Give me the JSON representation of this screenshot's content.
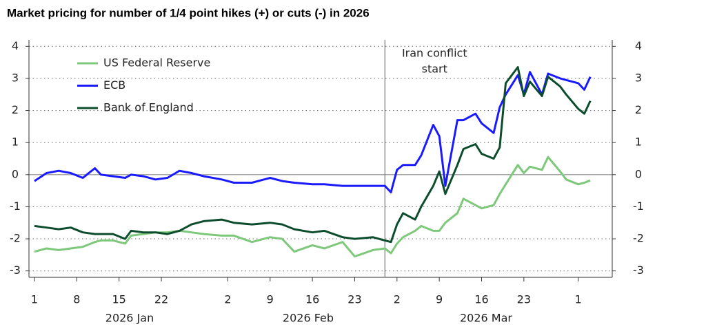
{
  "chart_data": {
    "type": "line",
    "title": "Market pricing for number of 1/4 point hikes (+) or cuts (-) in 2026",
    "month_labels": [
      "2026 Jan",
      "2026 Feb",
      "2026 Mar"
    ],
    "annotation": {
      "lines": [
        "Iran conflict",
        "start"
      ],
      "x": "2026-02-28"
    },
    "x": [
      "2026-01-01",
      "2026-01-03",
      "2026-01-05",
      "2026-01-07",
      "2026-01-09",
      "2026-01-11",
      "2026-01-12",
      "2026-01-14",
      "2026-01-16",
      "2026-01-17",
      "2026-01-19",
      "2026-01-21",
      "2026-01-23",
      "2026-01-25",
      "2026-01-27",
      "2026-01-29",
      "2026-02-01",
      "2026-02-03",
      "2026-02-06",
      "2026-02-09",
      "2026-02-11",
      "2026-02-13",
      "2026-02-16",
      "2026-02-18",
      "2026-02-21",
      "2026-02-23",
      "2026-02-26",
      "2026-02-28",
      "2026-03-01",
      "2026-03-02",
      "2026-03-03",
      "2026-03-05",
      "2026-03-06",
      "2026-03-08",
      "2026-03-09",
      "2026-03-10",
      "2026-03-12",
      "2026-03-13",
      "2026-03-15",
      "2026-03-16",
      "2026-03-18",
      "2026-03-19",
      "2026-03-20",
      "2026-03-22",
      "2026-03-23",
      "2026-03-24",
      "2026-03-26",
      "2026-03-27",
      "2026-03-29",
      "2026-03-30",
      "2026-04-01",
      "2026-04-02",
      "2026-04-03"
    ],
    "series": [
      {
        "name": "US Federal Reserve",
        "color": "#7dc87a",
        "values": [
          -2.4,
          -2.3,
          -2.35,
          -2.3,
          -2.25,
          -2.1,
          -2.05,
          -2.05,
          -2.15,
          -1.9,
          -1.85,
          -1.8,
          -1.8,
          -1.75,
          -1.8,
          -1.85,
          -1.9,
          -1.9,
          -2.1,
          -1.95,
          -2.0,
          -2.4,
          -2.2,
          -2.3,
          -2.1,
          -2.55,
          -2.35,
          -2.3,
          -2.45,
          -2.15,
          -1.95,
          -1.75,
          -1.6,
          -1.75,
          -1.75,
          -1.5,
          -1.2,
          -0.75,
          -0.95,
          -1.05,
          -0.95,
          -0.6,
          -0.3,
          0.3,
          0.05,
          0.25,
          0.15,
          0.55,
          0.1,
          -0.15,
          -0.3,
          -0.25,
          -0.18
        ]
      },
      {
        "name": "ECB",
        "color": "#1a1aff",
        "values": [
          -0.2,
          0.05,
          0.12,
          0.05,
          -0.1,
          0.2,
          0.0,
          -0.05,
          -0.1,
          0.0,
          -0.05,
          -0.15,
          -0.1,
          0.12,
          0.05,
          -0.05,
          -0.15,
          -0.25,
          -0.25,
          -0.1,
          -0.2,
          -0.25,
          -0.3,
          -0.3,
          -0.35,
          -0.35,
          -0.35,
          -0.35,
          -0.55,
          0.15,
          0.3,
          0.3,
          0.6,
          1.55,
          1.2,
          -0.35,
          1.7,
          1.7,
          1.9,
          1.6,
          1.3,
          2.1,
          2.5,
          3.1,
          2.5,
          3.2,
          2.5,
          3.15,
          3.0,
          2.95,
          2.85,
          2.65,
          3.05
        ]
      },
      {
        "name": "Bank of England",
        "color": "#0d4d2e",
        "values": [
          -1.6,
          -1.65,
          -1.7,
          -1.65,
          -1.8,
          -1.85,
          -1.85,
          -1.85,
          -2.0,
          -1.75,
          -1.8,
          -1.8,
          -1.85,
          -1.75,
          -1.55,
          -1.45,
          -1.4,
          -1.5,
          -1.55,
          -1.5,
          -1.55,
          -1.7,
          -1.8,
          -1.75,
          -1.95,
          -2.0,
          -1.95,
          -2.05,
          -2.1,
          -1.55,
          -1.2,
          -1.4,
          -1.0,
          -0.35,
          0.1,
          -0.6,
          0.3,
          0.8,
          0.95,
          0.65,
          0.5,
          0.85,
          2.85,
          3.35,
          2.45,
          2.9,
          2.45,
          3.05,
          2.75,
          2.5,
          2.05,
          1.9,
          2.3
        ]
      }
    ],
    "xlim": [
      "2026-01-01",
      "2026-04-04"
    ],
    "xticks": [
      {
        "value": "2026-01-01",
        "label": "1"
      },
      {
        "value": "2026-01-08",
        "label": "8"
      },
      {
        "value": "2026-01-15",
        "label": "15"
      },
      {
        "value": "2026-01-22",
        "label": "22"
      },
      {
        "value": "2026-02-02",
        "label": "2"
      },
      {
        "value": "2026-02-09",
        "label": "9"
      },
      {
        "value": "2026-02-16",
        "label": "16"
      },
      {
        "value": "2026-02-23",
        "label": "23"
      },
      {
        "value": "2026-03-02",
        "label": "2"
      },
      {
        "value": "2026-03-09",
        "label": "9"
      },
      {
        "value": "2026-03-16",
        "label": "16"
      },
      {
        "value": "2026-03-23",
        "label": "23"
      },
      {
        "value": "2026-04-01",
        "label": "1"
      }
    ],
    "ylim": [
      -3.2,
      4.2
    ],
    "yticks": [
      -3,
      -2,
      -1,
      0,
      1,
      2,
      3,
      4
    ],
    "grid": true,
    "legend": "upper left"
  }
}
